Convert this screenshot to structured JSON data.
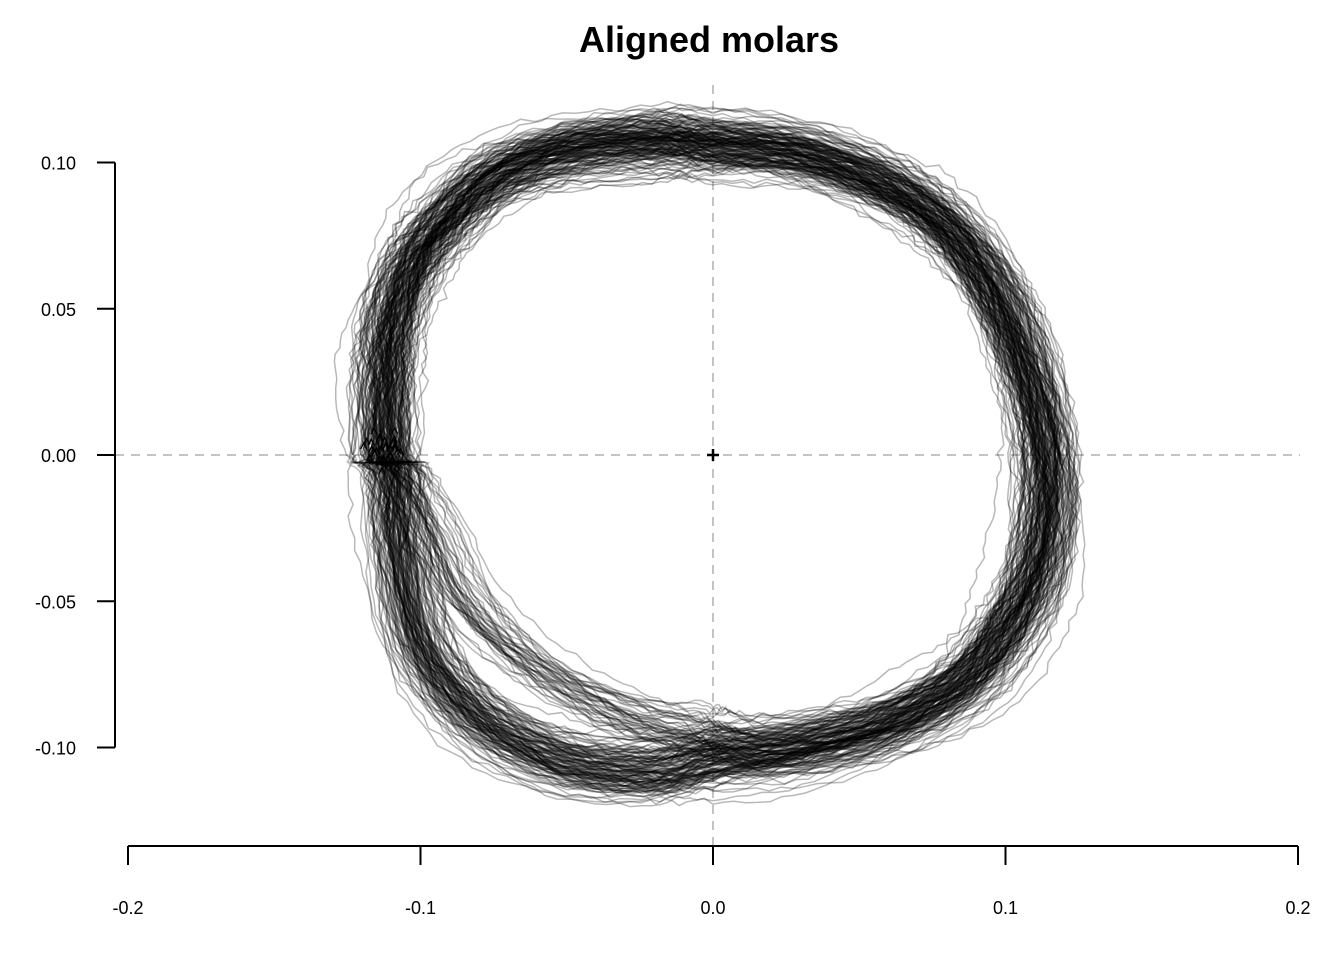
{
  "chart_data": {
    "type": "line",
    "title": "Aligned molars",
    "xlabel": "",
    "ylabel": "",
    "xlim": [
      -0.2,
      0.2
    ],
    "ylim": [
      -0.12,
      0.12
    ],
    "x_ticks": [
      -0.2,
      -0.1,
      0.0,
      0.1,
      0.2
    ],
    "x_tick_labels": [
      "-0.2",
      "-0.1",
      "0.0",
      "0.1",
      "0.2"
    ],
    "y_ticks": [
      -0.1,
      -0.05,
      0.0,
      0.05,
      0.1
    ],
    "y_tick_labels": [
      "-0.10",
      "-0.05",
      "0.00",
      "0.05",
      "0.10"
    ],
    "reference_lines": {
      "x": 0.0,
      "y": 0.0,
      "style": "dashed",
      "color": "#b0b0b0"
    },
    "centroid_marker": {
      "x": 0.0,
      "y": 0.0,
      "symbol": "+"
    },
    "outline_color": "#000000",
    "outline_opacity": 0.28,
    "grid": false,
    "legend": "none",
    "mean_outline": {
      "x": [
        -0.112,
        -0.112,
        -0.11,
        -0.103,
        -0.092,
        -0.075,
        -0.05,
        -0.02,
        0.0,
        0.03,
        0.06,
        0.08,
        0.095,
        0.105,
        0.112,
        0.114,
        0.11,
        0.1,
        0.085,
        0.06,
        0.03,
        0.0,
        -0.02,
        -0.05,
        -0.08,
        -0.1,
        -0.108,
        -0.11
      ],
      "y": [
        0.0,
        0.025,
        0.045,
        0.065,
        0.08,
        0.095,
        0.104,
        0.107,
        0.106,
        0.103,
        0.092,
        0.078,
        0.058,
        0.035,
        0.01,
        -0.015,
        -0.04,
        -0.06,
        -0.078,
        -0.092,
        -0.1,
        -0.104,
        -0.108,
        -0.105,
        -0.09,
        -0.065,
        -0.03,
        -0.005
      ]
    },
    "outline_variation": {
      "count": 180,
      "description_note_removed": true
    }
  }
}
